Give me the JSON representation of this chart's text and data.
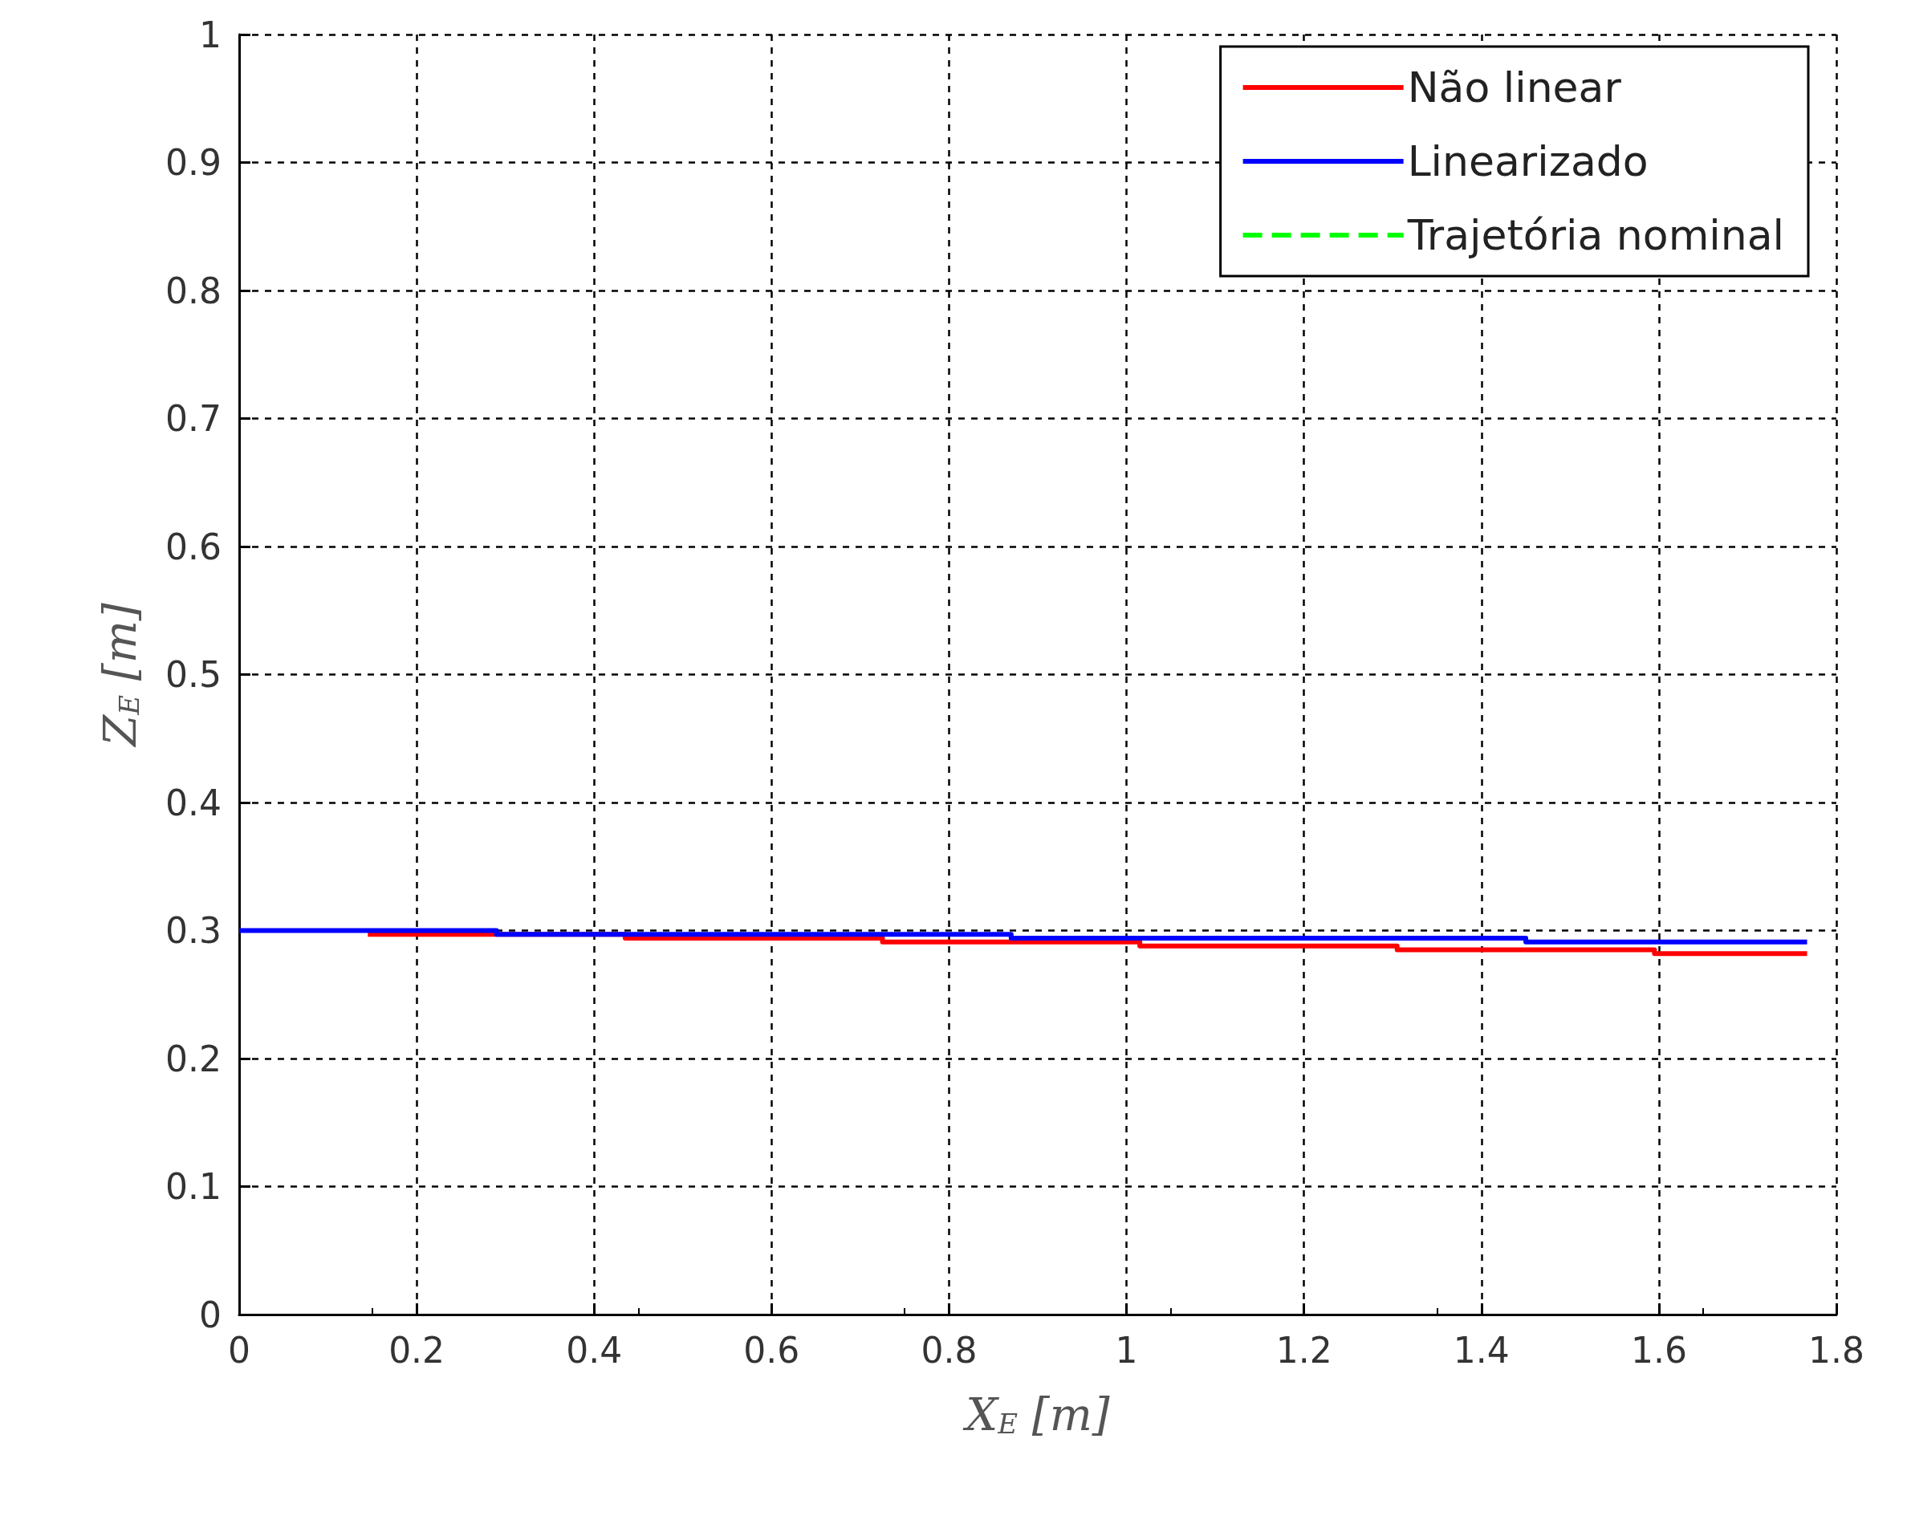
{
  "chart_data": {
    "type": "step",
    "xlabel": "X$_{E}$ [m]",
    "ylabel": "Z$_{E}$ [m]",
    "xlim": [
      0,
      1.8
    ],
    "xticks": [
      0,
      0.2,
      0.4,
      0.6,
      0.8,
      1,
      1.2,
      1.4,
      1.6,
      1.8
    ],
    "ylim": [
      0,
      1
    ],
    "yticks": [
      0,
      0.1,
      0.2,
      0.3,
      0.4,
      0.5,
      0.6,
      0.7,
      0.8,
      0.9,
      1
    ],
    "grid": true,
    "legend": "top right",
    "marker": "none",
    "series": [
      {
        "name": "Não linear",
        "color": "#ff0000",
        "x": [
          0.145,
          0.435,
          0.725,
          1.015,
          1.305,
          1.595,
          1.767
        ],
        "values": [
          0.297,
          0.294,
          0.291,
          0.288,
          0.285,
          0.282,
          0.282
        ]
      },
      {
        "name": "Linearizado",
        "color": "#0000ff",
        "x": [
          0,
          0.29,
          0.87,
          1.45,
          1.767
        ],
        "values": [
          0.3,
          0.297,
          0.294,
          0.291,
          0.291
        ]
      },
      {
        "name": "Trajetória nominal",
        "color": "#00ff00",
        "line_style": "dashed"
      }
    ]
  }
}
